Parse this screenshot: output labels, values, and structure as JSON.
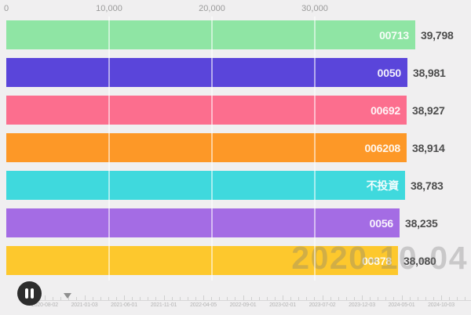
{
  "watermark": "2020-10-04",
  "chart_data": {
    "type": "bar",
    "orientation": "horizontal",
    "title": "",
    "xlabel": "",
    "ylabel": "",
    "categories": [
      "00713",
      "0050",
      "00692",
      "006208",
      "不投資",
      "0056",
      "00878"
    ],
    "values": [
      39798,
      38981,
      38927,
      38914,
      38783,
      38235,
      38080
    ],
    "value_labels": [
      "39,798",
      "38,981",
      "38,927",
      "38,914",
      "38,783",
      "38,235",
      "38,080"
    ],
    "bar_colors": [
      "#8fe5a4",
      "#5a45da",
      "#fc6e8e",
      "#fd9827",
      "#3fd9dd",
      "#a46ce4",
      "#fdc82d"
    ],
    "x_ticks": [
      {
        "label": "0",
        "value": 0
      },
      {
        "label": "10,000",
        "value": 10000
      },
      {
        "label": "20,000",
        "value": 20000
      },
      {
        "label": "30,000",
        "value": 30000
      }
    ],
    "xlim": [
      0,
      45000
    ],
    "grid": true,
    "legend": "none",
    "current_frame_date": "2020-10-04"
  },
  "player": {
    "pause_button": "pause",
    "timeline_labels": [
      "2020-08-02",
      "2021-01-03",
      "2021-06-01",
      "2021-11-01",
      "2022-04-05",
      "2022-09-01",
      "2023-02-01",
      "2023-07-02",
      "2023-12-03",
      "2024-05-01",
      "2024-10-03"
    ],
    "handle_position_date": "2020-10-04"
  },
  "colors": {
    "background": "#f0eff0",
    "value_text": "#4d4d4d",
    "bar_label_text": "#ffffff",
    "axis_text": "#9a9a9a",
    "timeline_text": "#b4b4b4",
    "watermark_text": "rgba(120,120,120,0.33)",
    "pause_button_bg": "#2d2d2d"
  }
}
